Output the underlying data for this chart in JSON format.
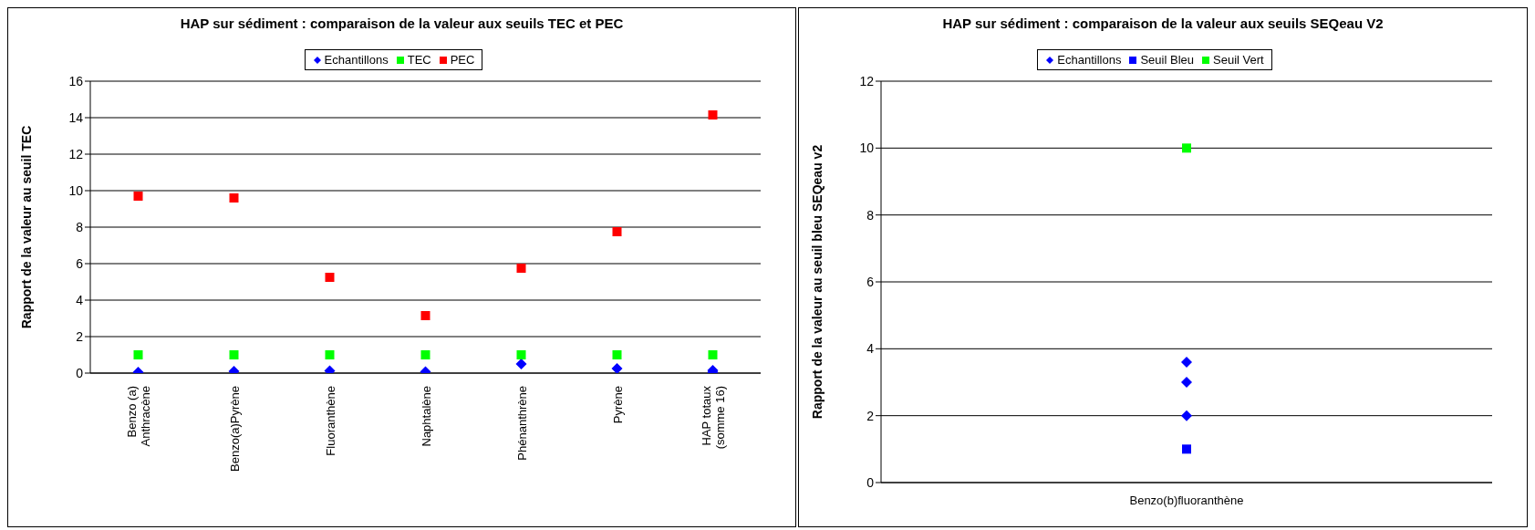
{
  "chart_data": [
    {
      "type": "scatter",
      "title": "HAP sur sédiment : comparaison de la valeur aux seuils TEC et PEC",
      "ylabel": "Rapport de la valeur au seuil TEC",
      "categories": [
        "Benzo (a) Anthracène",
        "Benzo(a)Pyrène",
        "Fluoranthène",
        "Naphtalène",
        "Phénanthrène",
        "Pyrène",
        "HAP totaux (somme 16)"
      ],
      "ylim": [
        0,
        16
      ],
      "yticks": [
        0,
        2,
        4,
        6,
        8,
        10,
        12,
        14,
        16
      ],
      "grid": "y",
      "legend": "top",
      "series": [
        {
          "name": "Echantillons",
          "color": "#0000ff",
          "marker": "diamond",
          "x": [
            "Benzo (a) Anthracène",
            "Benzo(a)Pyrène",
            "Fluoranthène",
            "Naphtalène",
            "Phénanthrène",
            "Pyrène",
            "HAP totaux (somme 16)",
            "HAP totaux (somme 16)"
          ],
          "values": [
            0.05,
            0.1,
            0.12,
            0.08,
            0.5,
            0.25,
            0.15,
            0.05
          ]
        },
        {
          "name": "TEC",
          "color": "#00ff00",
          "marker": "square",
          "values": [
            1,
            1,
            1,
            1,
            1,
            1,
            1
          ]
        },
        {
          "name": "PEC",
          "color": "#ff0000",
          "marker": "square",
          "values": [
            9.7,
            9.6,
            5.25,
            3.15,
            5.75,
            7.75,
            14.15
          ]
        }
      ]
    },
    {
      "type": "scatter",
      "title": "HAP sur sédiment : comparaison de la valeur aux seuils SEQeau V2",
      "ylabel": "Rapport de la valeur au seuil bleu SEQeau v2",
      "categories": [
        "Benzo(b)fluoranthène"
      ],
      "ylim": [
        0,
        12
      ],
      "yticks": [
        0,
        2,
        4,
        6,
        8,
        10,
        12
      ],
      "grid": "y",
      "legend": "top",
      "series": [
        {
          "name": "Echantillons",
          "color": "#0000ff",
          "marker": "diamond",
          "x": [
            "Benzo(b)fluoranthène",
            "Benzo(b)fluoranthène",
            "Benzo(b)fluoranthène"
          ],
          "values": [
            3.6,
            3.0,
            2.0
          ]
        },
        {
          "name": "Seuil Bleu",
          "color": "#0000ff",
          "marker": "square",
          "values": [
            1
          ]
        },
        {
          "name": "Seuil Vert",
          "color": "#00ff00",
          "marker": "square",
          "values": [
            10
          ]
        }
      ]
    }
  ]
}
